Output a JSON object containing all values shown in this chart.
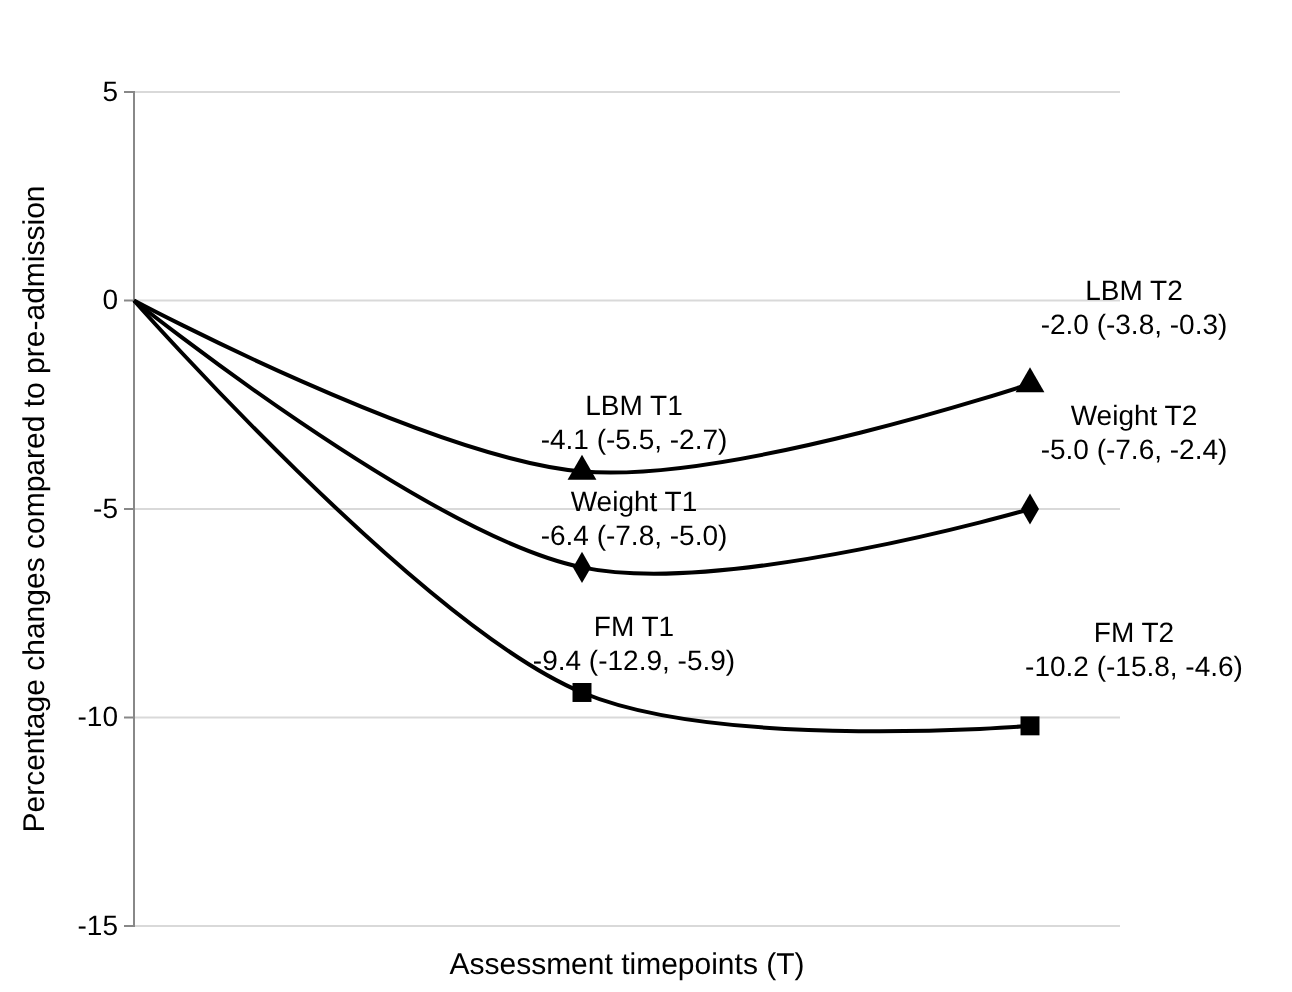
{
  "chart_data": {
    "type": "line",
    "xlabel": "Assessment timepoints (T)",
    "ylabel": "Percentage changes compared to pre-admission",
    "categories": [
      null,
      null,
      null
    ],
    "ylim": [
      -15,
      5
    ],
    "yticks": [
      -15,
      -10,
      -5,
      0,
      5
    ],
    "grid": "y",
    "line_style": "solid",
    "series": [
      {
        "color": "#000000",
        "marker": "triangle",
        "values": [
          0,
          -4.1,
          -2.0
        ],
        "value_labels": [
          null,
          "LBM T1\n-4.1 (-5.5, -2.7)",
          "LBM T2\n-2.0 (-3.8, -0.3)"
        ]
      },
      {
        "color": "#000000",
        "marker": "diamond",
        "values": [
          0,
          -6.4,
          -5.0
        ],
        "value_labels": [
          null,
          "Weight T1\n-6.4 (-7.8, -5.0)",
          "Weight T2\n-5.0 (-7.6, -2.4)"
        ]
      },
      {
        "color": "#000000",
        "marker": "square",
        "values": [
          0,
          -9.4,
          -10.2
        ],
        "value_labels": [
          null,
          "FM T1\n-9.4 (-12.9, -5.9)",
          "FM T2\n-10.2 (-15.8, -4.6)"
        ]
      }
    ]
  }
}
